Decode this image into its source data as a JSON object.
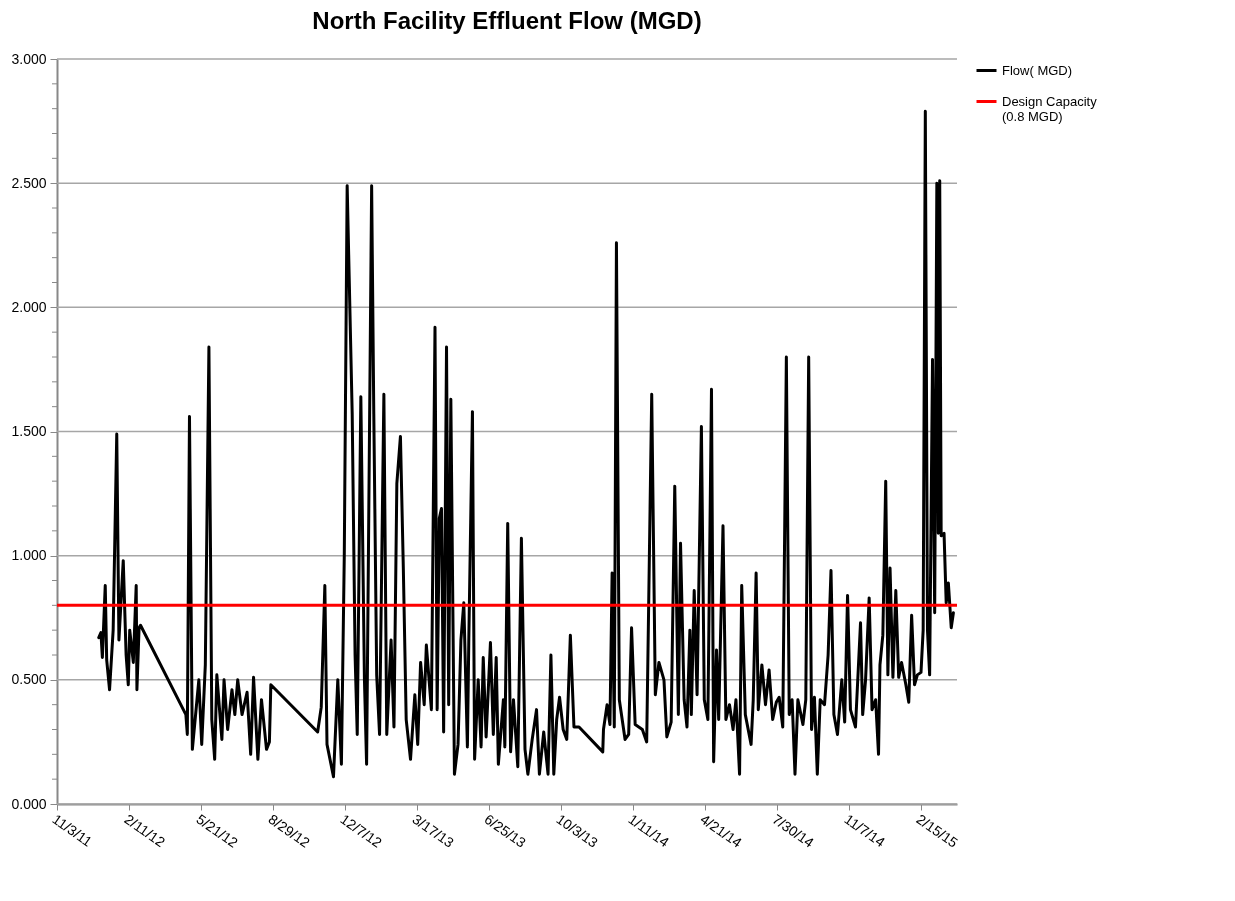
{
  "chart_data": {
    "type": "line",
    "title": "North Facility Effluent Flow (MGD)",
    "series": [
      {
        "name": "Flow( MGD)",
        "color": "#000000",
        "x": [
          "2011-12-31",
          "2012-01-03",
          "2012-01-05",
          "2012-01-09",
          "2012-01-11",
          "2012-01-15",
          "2012-01-20",
          "2012-01-25",
          "2012-01-28",
          "2012-02-03",
          "2012-02-07",
          "2012-02-10",
          "2012-02-12",
          "2012-02-17",
          "2012-02-21",
          "2012-02-22",
          "2012-02-25",
          "2012-02-27",
          "2012-04-30",
          "2012-05-02",
          "2012-05-05",
          "2012-05-09",
          "2012-05-18",
          "2012-05-22",
          "2012-05-27",
          "2012-06-01",
          "2012-06-05",
          "2012-06-09",
          "2012-06-12",
          "2012-06-19",
          "2012-06-22",
          "2012-06-27",
          "2012-07-03",
          "2012-07-07",
          "2012-07-11",
          "2012-07-17",
          "2012-07-24",
          "2012-07-29",
          "2012-08-02",
          "2012-08-08",
          "2012-08-13",
          "2012-08-20",
          "2012-08-24",
          "2012-08-26",
          "2012-10-30",
          "2012-11-04",
          "2012-11-09",
          "2012-11-12",
          "2012-11-21",
          "2012-11-27",
          "2012-12-02",
          "2012-12-06",
          "2012-12-10",
          "2012-12-17",
          "2012-12-21",
          "2012-12-24",
          "2012-12-29",
          "2013-01-03",
          "2013-01-06",
          "2013-01-13",
          "2013-01-16",
          "2013-01-20",
          "2013-01-24",
          "2013-01-30",
          "2013-02-03",
          "2013-02-09",
          "2013-02-13",
          "2013-02-17",
          "2013-02-22",
          "2013-02-26",
          "2013-03-02",
          "2013-03-08",
          "2013-03-14",
          "2013-03-18",
          "2013-03-22",
          "2013-03-27",
          "2013-03-30",
          "2013-04-06",
          "2013-04-11",
          "2013-04-14",
          "2013-04-17",
          "2013-04-20",
          "2013-04-23",
          "2013-04-27",
          "2013-04-30",
          "2013-05-03",
          "2013-05-08",
          "2013-05-13",
          "2013-05-17",
          "2013-05-21",
          "2013-05-26",
          "2013-05-28",
          "2013-06-02",
          "2013-06-05",
          "2013-06-10",
          "2013-06-14",
          "2013-06-17",
          "2013-06-21",
          "2013-06-27",
          "2013-07-01",
          "2013-07-05",
          "2013-07-08",
          "2013-07-15",
          "2013-07-17",
          "2013-07-21",
          "2013-07-25",
          "2013-07-29",
          "2013-08-04",
          "2013-08-09",
          "2013-08-14",
          "2013-08-18",
          "2013-08-24",
          "2013-08-30",
          "2013-09-03",
          "2013-09-09",
          "2013-09-15",
          "2013-09-19",
          "2013-09-23",
          "2013-09-27",
          "2013-10-01",
          "2013-10-06",
          "2013-10-11",
          "2013-10-16",
          "2013-10-21",
          "2013-10-28",
          "2013-11-30",
          "2013-12-01",
          "2013-12-06",
          "2013-12-10",
          "2013-12-13",
          "2013-12-16",
          "2013-12-19",
          "2013-12-23",
          "2013-12-31",
          "2014-01-05",
          "2014-01-09",
          "2014-01-14",
          "2014-01-24",
          "2014-01-30",
          "2014-02-06",
          "2014-02-11",
          "2014-02-16",
          "2014-02-23",
          "2014-02-27",
          "2014-03-05",
          "2014-03-10",
          "2014-03-15",
          "2014-03-18",
          "2014-03-23",
          "2014-03-27",
          "2014-03-31",
          "2014-04-02",
          "2014-04-06",
          "2014-04-10",
          "2014-04-16",
          "2014-04-20",
          "2014-04-25",
          "2014-04-30",
          "2014-05-03",
          "2014-05-07",
          "2014-05-10",
          "2014-05-16",
          "2014-05-20",
          "2014-05-25",
          "2014-05-30",
          "2014-06-03",
          "2014-06-08",
          "2014-06-11",
          "2014-06-16",
          "2014-06-24",
          "2014-06-27",
          "2014-07-01",
          "2014-07-04",
          "2014-07-09",
          "2014-07-14",
          "2014-07-19",
          "2014-07-24",
          "2014-07-29",
          "2014-08-02",
          "2014-08-07",
          "2014-08-12",
          "2014-08-16",
          "2014-08-20",
          "2014-08-24",
          "2014-08-28",
          "2014-09-04",
          "2014-09-08",
          "2014-09-12",
          "2014-09-16",
          "2014-09-20",
          "2014-09-24",
          "2014-09-28",
          "2014-10-04",
          "2014-10-09",
          "2014-10-13",
          "2014-10-17",
          "2014-10-22",
          "2014-10-28",
          "2014-11-01",
          "2014-11-05",
          "2014-11-09",
          "2014-11-16",
          "2014-11-23",
          "2014-11-26",
          "2014-11-30",
          "2014-12-05",
          "2014-12-09",
          "2014-12-14",
          "2014-12-18",
          "2014-12-20",
          "2014-12-24",
          "2014-12-28",
          "2014-12-31",
          "2015-01-03",
          "2015-01-07",
          "2015-01-11",
          "2015-01-15",
          "2015-01-19",
          "2015-01-25",
          "2015-01-29",
          "2015-02-02",
          "2015-02-06",
          "2015-02-10",
          "2015-02-15",
          "2015-02-18",
          "2015-02-21",
          "2015-02-24",
          "2015-02-27",
          "2015-03-03",
          "2015-03-06",
          "2015-03-09",
          "2015-03-11",
          "2015-03-13",
          "2015-03-15",
          "2015-03-19",
          "2015-03-22",
          "2015-03-25",
          "2015-03-29",
          "2015-04-01"
        ],
        "values": [
          0.67,
          0.69,
          0.59,
          0.88,
          0.58,
          0.46,
          0.7,
          1.49,
          0.66,
          0.98,
          0.6,
          0.48,
          0.7,
          0.57,
          0.88,
          0.46,
          0.71,
          0.72,
          0.36,
          0.28,
          1.56,
          0.22,
          0.5,
          0.24,
          0.56,
          1.84,
          0.34,
          0.18,
          0.52,
          0.26,
          0.5,
          0.3,
          0.46,
          0.36,
          0.5,
          0.36,
          0.45,
          0.2,
          0.51,
          0.18,
          0.42,
          0.22,
          0.25,
          0.48,
          0.29,
          0.39,
          0.88,
          0.24,
          0.11,
          0.5,
          0.16,
          1.0,
          2.49,
          1.57,
          0.6,
          0.28,
          1.64,
          0.5,
          0.16,
          2.49,
          1.57,
          0.52,
          0.28,
          1.65,
          0.28,
          0.66,
          0.31,
          1.29,
          1.48,
          0.95,
          0.34,
          0.18,
          0.44,
          0.24,
          0.57,
          0.4,
          0.64,
          0.38,
          1.92,
          0.38,
          1.15,
          1.19,
          0.29,
          1.84,
          0.4,
          1.63,
          0.12,
          0.24,
          0.66,
          0.81,
          0.23,
          0.67,
          1.58,
          0.18,
          0.5,
          0.23,
          0.59,
          0.27,
          0.65,
          0.28,
          0.59,
          0.16,
          0.42,
          0.23,
          1.13,
          0.21,
          0.42,
          0.15,
          1.07,
          0.22,
          0.12,
          0.26,
          0.38,
          0.12,
          0.29,
          0.12,
          0.6,
          0.12,
          0.34,
          0.43,
          0.3,
          0.26,
          0.68,
          0.31,
          0.31,
          0.21,
          0.3,
          0.4,
          0.32,
          0.93,
          0.31,
          2.26,
          0.42,
          0.26,
          0.28,
          0.71,
          0.32,
          0.3,
          0.25,
          1.65,
          0.44,
          0.57,
          0.5,
          0.27,
          0.33,
          1.28,
          0.36,
          1.05,
          0.42,
          0.31,
          0.7,
          0.36,
          0.86,
          0.44,
          1.52,
          0.42,
          0.34,
          1.67,
          0.17,
          0.62,
          0.34,
          1.12,
          0.34,
          0.4,
          0.3,
          0.42,
          0.12,
          0.88,
          0.36,
          0.24,
          0.42,
          0.93,
          0.38,
          0.56,
          0.4,
          0.54,
          0.34,
          0.41,
          0.43,
          0.31,
          1.8,
          0.36,
          0.42,
          0.12,
          0.42,
          0.32,
          0.42,
          1.8,
          0.3,
          0.43,
          0.12,
          0.42,
          0.4,
          0.6,
          0.94,
          0.36,
          0.28,
          0.5,
          0.33,
          0.84,
          0.38,
          0.31,
          0.73,
          0.36,
          0.5,
          0.83,
          0.38,
          0.42,
          0.2,
          0.56,
          0.68,
          1.3,
          0.52,
          0.95,
          0.51,
          0.86,
          0.51,
          0.57,
          0.48,
          0.41,
          0.76,
          0.48,
          0.52,
          0.53,
          0.7,
          2.79,
          0.7,
          0.52,
          1.79,
          0.77,
          2.5,
          1.09,
          2.51,
          1.08,
          1.09,
          0.81,
          0.89,
          0.71,
          0.77
        ]
      }
    ],
    "ref_lines": [
      {
        "axis": "y",
        "value": 0.8,
        "label": "Design Capacity (0.8 MGD)",
        "color": "#ff0000"
      }
    ],
    "xlim": [
      "2011-11-03",
      "2015-04-06"
    ],
    "xticks": [
      {
        "value": "2011-11-03",
        "label": "11/3/11"
      },
      {
        "value": "2012-02-11",
        "label": "2/11/12"
      },
      {
        "value": "2012-05-21",
        "label": "5/21/12"
      },
      {
        "value": "2012-08-29",
        "label": "8/29/12"
      },
      {
        "value": "2012-12-07",
        "label": "12/7/12"
      },
      {
        "value": "2013-03-17",
        "label": "3/17/13"
      },
      {
        "value": "2013-06-25",
        "label": "6/25/13"
      },
      {
        "value": "2013-10-03",
        "label": "10/3/13"
      },
      {
        "value": "2014-01-11",
        "label": "1/11/14"
      },
      {
        "value": "2014-04-21",
        "label": "4/21/14"
      },
      {
        "value": "2014-07-30",
        "label": "7/30/14"
      },
      {
        "value": "2014-11-07",
        "label": "11/7/14"
      },
      {
        "value": "2015-02-15",
        "label": "2/15/15"
      }
    ],
    "ylim": [
      0,
      3
    ],
    "yticks": [
      {
        "value": 0,
        "label": "0.000"
      },
      {
        "value": 0.1,
        "label": null
      },
      {
        "value": 0.2,
        "label": null
      },
      {
        "value": 0.3,
        "label": null
      },
      {
        "value": 0.4,
        "label": null
      },
      {
        "value": 0.5,
        "label": "0.500"
      },
      {
        "value": 0.6,
        "label": null
      },
      {
        "value": 0.7,
        "label": null
      },
      {
        "value": 0.8,
        "label": null
      },
      {
        "value": 0.9,
        "label": null
      },
      {
        "value": 1,
        "label": "1.000"
      },
      {
        "value": 1.1,
        "label": null
      },
      {
        "value": 1.2,
        "label": null
      },
      {
        "value": 1.3,
        "label": null
      },
      {
        "value": 1.4,
        "label": null
      },
      {
        "value": 1.5,
        "label": "1.500"
      },
      {
        "value": 1.6,
        "label": null
      },
      {
        "value": 1.7,
        "label": null
      },
      {
        "value": 1.8,
        "label": null
      },
      {
        "value": 1.9,
        "label": null
      },
      {
        "value": 2,
        "label": "2.000"
      },
      {
        "value": 2.1,
        "label": null
      },
      {
        "value": 2.2,
        "label": null
      },
      {
        "value": 2.3,
        "label": null
      },
      {
        "value": 2.4,
        "label": null
      },
      {
        "value": 2.5,
        "label": "2.500"
      },
      {
        "value": 2.6,
        "label": null
      },
      {
        "value": 2.7,
        "label": null
      },
      {
        "value": 2.8,
        "label": null
      },
      {
        "value": 2.9,
        "label": null
      },
      {
        "value": 3,
        "label": "3.000"
      }
    ],
    "grid": "y",
    "legend": "right"
  }
}
